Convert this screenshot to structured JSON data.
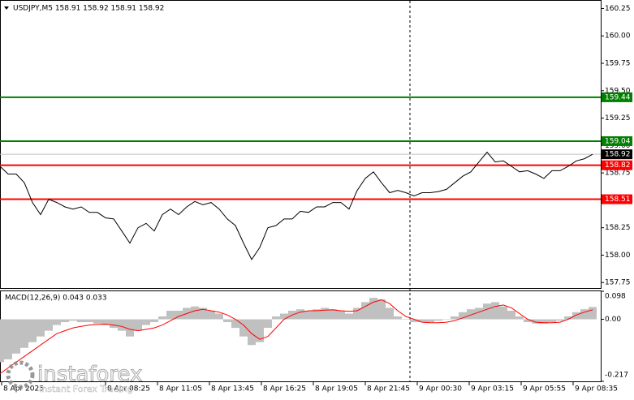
{
  "chart_data": [
    {
      "type": "line",
      "title": "USDJPY,M5  158.91 158.92 158.91 158.92",
      "color": "#000000",
      "values": [
        158.81,
        158.74,
        158.74,
        158.66,
        158.48,
        158.37,
        158.51,
        158.48,
        158.44,
        158.42,
        158.44,
        158.39,
        158.39,
        158.34,
        158.33,
        158.22,
        158.11,
        158.25,
        158.29,
        158.22,
        158.37,
        158.42,
        158.37,
        158.44,
        158.49,
        158.46,
        158.48,
        158.42,
        158.33,
        158.27,
        158.11,
        157.96,
        158.07,
        158.25,
        158.27,
        158.33,
        158.33,
        158.4,
        158.39,
        158.44,
        158.44,
        158.48,
        158.48,
        158.42,
        158.59,
        158.7,
        158.76,
        158.66,
        158.57,
        158.59,
        158.57,
        158.54,
        158.57,
        158.57,
        158.58,
        158.6,
        158.66,
        158.72,
        158.76,
        158.85,
        158.94,
        158.85,
        158.86,
        158.81,
        158.76,
        158.77,
        158.74,
        158.7,
        158.77,
        158.77,
        158.81,
        158.86,
        158.88,
        158.92
      ],
      "xlim": [
        0,
        74
      ],
      "xticks": [
        {
          "value": 0.2,
          "label": "8 Apr 2025"
        },
        {
          "value": 13,
          "label": "8 Apr 08:25"
        },
        {
          "value": 19.4,
          "label": "8 Apr 11:05"
        },
        {
          "value": 25.8,
          "label": "8 Apr 13:45"
        },
        {
          "value": 32.2,
          "label": "8 Apr 16:25"
        },
        {
          "value": 38.6,
          "label": "8 Apr 19:05"
        },
        {
          "value": 45,
          "label": "8 Apr 21:45"
        },
        {
          "value": 51.4,
          "label": "9 Apr 00:30"
        },
        {
          "value": 57.8,
          "label": "9 Apr 03:15"
        },
        {
          "value": 64.2,
          "label": "9 Apr 05:55"
        },
        {
          "value": 70.6,
          "label": "9 Apr 08:35"
        }
      ],
      "ylim": [
        157.7,
        160.32
      ],
      "yticks": [
        157.75,
        {
          "value": 158,
          "label": "158.00"
        },
        158.25,
        {
          "value": 158.5,
          "label": "158.50"
        },
        158.75,
        {
          "value": 159,
          "label": "159.00"
        },
        159.25,
        {
          "value": 159.5,
          "label": "159.50"
        },
        159.75,
        {
          "value": 160,
          "label": "160.00"
        },
        160.25
      ],
      "levels": [
        {
          "value": 159.44,
          "color": "#008000"
        },
        {
          "value": 159.04,
          "color": "#008000"
        },
        {
          "value": 158.82,
          "color": "#ff0000"
        },
        {
          "value": 158.51,
          "color": "#ff0000"
        }
      ],
      "current_price": 158.92
    },
    {
      "type": "macd",
      "title": "MACD(12,26,9) 0.043 0.033",
      "series": [
        {
          "style": "bar",
          "color": "#c0c0c0",
          "values": [
            -0.15,
            -0.14,
            -0.12,
            -0.1,
            -0.08,
            -0.06,
            -0.04,
            -0.02,
            -0.01,
            -0.005,
            -0.01,
            -0.01,
            -0.015,
            -0.02,
            -0.03,
            -0.04,
            -0.06,
            -0.04,
            -0.02,
            -0.01,
            0.01,
            0.03,
            0.03,
            0.04,
            0.045,
            0.04,
            0.03,
            0.02,
            -0.01,
            -0.03,
            -0.06,
            -0.09,
            -0.08,
            -0.03,
            0.01,
            0.02,
            0.03,
            0.035,
            0.03,
            0.035,
            0.04,
            0.035,
            0.03,
            0.02,
            0.04,
            0.06,
            0.075,
            0.07,
            0.04,
            0.01,
            0.0,
            -0.01,
            -0.01,
            -0.01,
            -0.005,
            0.0,
            0.01,
            0.025,
            0.035,
            0.04,
            0.055,
            0.06,
            0.045,
            0.03,
            0.01,
            -0.01,
            -0.015,
            -0.015,
            -0.01,
            -0.005,
            0.01,
            0.025,
            0.035,
            0.043
          ]
        },
        {
          "style": "line",
          "color": "#ff0000",
          "values": [
            -0.19,
            -0.17,
            -0.15,
            -0.13,
            -0.11,
            -0.09,
            -0.07,
            -0.05,
            -0.04,
            -0.03,
            -0.025,
            -0.02,
            -0.018,
            -0.017,
            -0.02,
            -0.025,
            -0.035,
            -0.04,
            -0.035,
            -0.03,
            -0.02,
            -0.005,
            0.01,
            0.02,
            0.03,
            0.035,
            0.03,
            0.025,
            0.015,
            0.0,
            -0.02,
            -0.05,
            -0.07,
            -0.06,
            -0.03,
            0.0,
            0.015,
            0.025,
            0.03,
            0.03,
            0.032,
            0.033,
            0.03,
            0.028,
            0.03,
            0.045,
            0.06,
            0.068,
            0.055,
            0.03,
            0.01,
            0.0,
            -0.01,
            -0.012,
            -0.012,
            -0.01,
            -0.005,
            0.005,
            0.015,
            0.025,
            0.035,
            0.045,
            0.05,
            0.04,
            0.02,
            0.0,
            -0.01,
            -0.012,
            -0.012,
            -0.01,
            0.0,
            0.015,
            0.025,
            0.033
          ]
        }
      ],
      "ylim": [
        -0.217,
        0.098
      ],
      "yticks": [
        0.098,
        {
          "value": 0,
          "label": "0.00"
        },
        -0.217
      ]
    }
  ],
  "watermark": {
    "brand": "instaforex",
    "tagline": "Instant Forex Trading"
  }
}
